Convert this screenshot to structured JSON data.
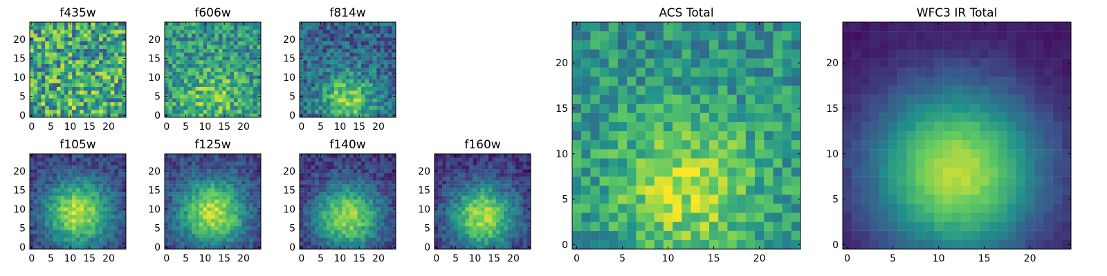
{
  "figure": {
    "colormap": "viridis",
    "colormap_stops": [
      "#440154",
      "#3b528b",
      "#21918c",
      "#5ec962",
      "#fde725"
    ]
  },
  "chart_data": [
    {
      "type": "heatmap",
      "title": "f435w",
      "grid_size": [
        25,
        25
      ],
      "xlim": [
        0,
        24
      ],
      "ylim": [
        0,
        24
      ],
      "xticks": [
        0,
        5,
        10,
        15,
        20
      ],
      "yticks": [
        0,
        5,
        10,
        15,
        20
      ],
      "origin": "lower",
      "intensity_model": {
        "center": [
          12,
          2
        ],
        "sigma": 6,
        "peak": 0.08,
        "base": 0.58,
        "noise": 0.34,
        "seed": 11
      }
    },
    {
      "type": "heatmap",
      "title": "f606w",
      "grid_size": [
        25,
        25
      ],
      "xlim": [
        0,
        24
      ],
      "ylim": [
        0,
        24
      ],
      "xticks": [
        0,
        5,
        10,
        15,
        20
      ],
      "yticks": [
        0,
        5,
        10,
        15,
        20
      ],
      "origin": "lower",
      "intensity_model": {
        "center": [
          12,
          5
        ],
        "sigma": 6,
        "peak": 0.22,
        "base": 0.52,
        "noise": 0.24,
        "seed": 23
      }
    },
    {
      "type": "heatmap",
      "title": "f814w",
      "grid_size": [
        25,
        25
      ],
      "xlim": [
        0,
        24
      ],
      "ylim": [
        0,
        24
      ],
      "xticks": [
        0,
        5,
        10,
        15,
        20
      ],
      "yticks": [
        0,
        5,
        10,
        15,
        20
      ],
      "origin": "lower",
      "intensity_model": {
        "center": [
          12,
          4
        ],
        "sigma": 5,
        "peak": 0.48,
        "base": 0.32,
        "noise": 0.2,
        "seed": 37
      }
    },
    {
      "type": "heatmap",
      "title": "f105w",
      "grid_size": [
        25,
        25
      ],
      "xlim": [
        0,
        24
      ],
      "ylim": [
        0,
        24
      ],
      "xticks": [
        0,
        5,
        10,
        15,
        20
      ],
      "yticks": [
        0,
        5,
        10,
        15,
        20
      ],
      "origin": "lower",
      "intensity_model": {
        "center": [
          12,
          9
        ],
        "sigma": 6,
        "peak": 0.72,
        "base": 0.18,
        "noise": 0.12,
        "seed": 41
      }
    },
    {
      "type": "heatmap",
      "title": "f125w",
      "grid_size": [
        25,
        25
      ],
      "xlim": [
        0,
        24
      ],
      "ylim": [
        0,
        24
      ],
      "xticks": [
        0,
        5,
        10,
        15,
        20
      ],
      "yticks": [
        0,
        5,
        10,
        15,
        20
      ],
      "origin": "lower",
      "intensity_model": {
        "center": [
          12,
          9
        ],
        "sigma": 6,
        "peak": 0.7,
        "base": 0.2,
        "noise": 0.12,
        "seed": 53
      }
    },
    {
      "type": "heatmap",
      "title": "f140w",
      "grid_size": [
        25,
        25
      ],
      "xlim": [
        0,
        24
      ],
      "ylim": [
        0,
        24
      ],
      "xticks": [
        0,
        5,
        10,
        15,
        20
      ],
      "yticks": [
        0,
        5,
        10,
        15,
        20
      ],
      "origin": "lower",
      "intensity_model": {
        "center": [
          12,
          8
        ],
        "sigma": 6,
        "peak": 0.68,
        "base": 0.16,
        "noise": 0.12,
        "seed": 67
      }
    },
    {
      "type": "heatmap",
      "title": "f160w",
      "grid_size": [
        25,
        25
      ],
      "xlim": [
        0,
        24
      ],
      "ylim": [
        0,
        24
      ],
      "xticks": [
        0,
        5,
        10,
        15,
        20
      ],
      "yticks": [
        0,
        5,
        10,
        15,
        20
      ],
      "origin": "lower",
      "intensity_model": {
        "center": [
          12,
          8
        ],
        "sigma": 6,
        "peak": 0.74,
        "base": 0.14,
        "noise": 0.12,
        "seed": 79
      }
    },
    {
      "type": "heatmap",
      "title": "ACS Total",
      "grid_size": [
        25,
        25
      ],
      "xlim": [
        0,
        24
      ],
      "ylim": [
        0,
        24
      ],
      "xticks": [
        0,
        5,
        10,
        15,
        20
      ],
      "yticks": [
        0,
        5,
        10,
        15,
        20
      ],
      "origin": "lower",
      "intensity_model": {
        "center": [
          12,
          6
        ],
        "sigma": 6,
        "peak": 0.36,
        "base": 0.5,
        "noise": 0.18,
        "seed": 97
      }
    },
    {
      "type": "heatmap",
      "title": "WFC3 IR Total",
      "grid_size": [
        25,
        25
      ],
      "xlim": [
        0,
        24
      ],
      "ylim": [
        0,
        24
      ],
      "xticks": [
        0,
        5,
        10,
        15,
        20
      ],
      "yticks": [
        0,
        5,
        10,
        15,
        20
      ],
      "origin": "lower",
      "intensity_model": {
        "center": [
          12,
          8
        ],
        "sigma": 6.5,
        "peak": 0.84,
        "base": 0.06,
        "noise": 0.03,
        "seed": 131
      }
    }
  ]
}
